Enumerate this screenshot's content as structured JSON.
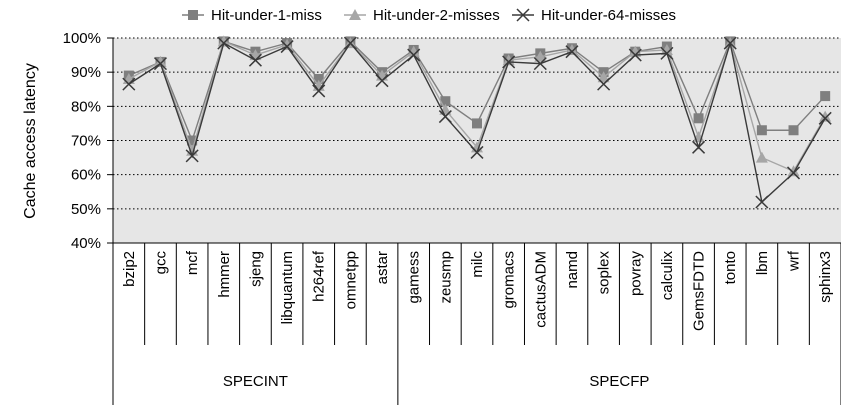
{
  "chart_data": {
    "type": "line",
    "ylabel": "Cache access latency",
    "ylim": [
      40,
      100
    ],
    "yticks": [
      "40%",
      "50%",
      "60%",
      "70%",
      "80%",
      "90%",
      "100%"
    ],
    "grid": "horizontal dotted",
    "legend_position": "top",
    "categories": [
      "bzip2",
      "gcc",
      "mcf",
      "hmmer",
      "sjeng",
      "libquantum",
      "h264ref",
      "omnetpp",
      "astar",
      "gamess",
      "zeusmp",
      "milc",
      "gromacs",
      "cactusADM",
      "namd",
      "soplex",
      "povray",
      "calculix",
      "GemsFDTD",
      "tonto",
      "lbm",
      "wrf",
      "sphinx3"
    ],
    "groups": [
      {
        "label": "SPECINT",
        "count": 9
      },
      {
        "label": "SPECFP",
        "count": 14
      }
    ],
    "series": [
      {
        "name": "Hit-under-1-miss",
        "marker": "square",
        "color": "#7f7f7f",
        "values": [
          89,
          93,
          70,
          99,
          96,
          98.5,
          88,
          99,
          90,
          96.5,
          81.5,
          75,
          94,
          95.5,
          97,
          90,
          96,
          97.5,
          76.5,
          99,
          73,
          73,
          83
        ]
      },
      {
        "name": "Hit-under-2-misses",
        "marker": "triangle",
        "color": "#a6a6a6",
        "values": [
          88,
          93,
          67,
          99,
          95,
          98,
          86,
          98.5,
          89,
          96,
          79,
          68,
          93.5,
          94.5,
          96.5,
          88.5,
          96,
          96.5,
          71,
          98.5,
          65,
          61,
          77
        ]
      },
      {
        "name": "Hit-under-64-misses",
        "marker": "x",
        "color": "#3a3a3a",
        "values": [
          86.5,
          92.5,
          65.5,
          98.5,
          93.5,
          97.5,
          84.5,
          98.5,
          87.5,
          95,
          77,
          66.5,
          93,
          92.5,
          96,
          86.5,
          95,
          95.5,
          68,
          98.5,
          52,
          60.5,
          76.5
        ]
      }
    ],
    "colors": {
      "plot_bg": "#e6e6e6",
      "grid": "#000000"
    }
  }
}
